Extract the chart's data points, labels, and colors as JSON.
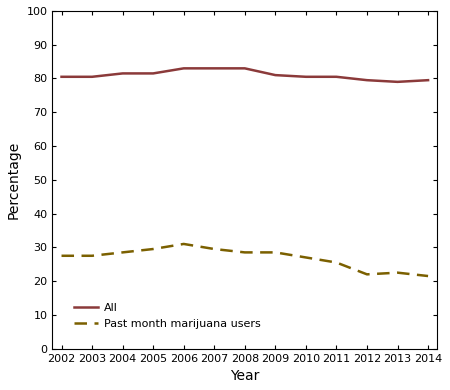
{
  "years": [
    2002,
    2003,
    2004,
    2005,
    2006,
    2007,
    2008,
    2009,
    2010,
    2011,
    2012,
    2013,
    2014
  ],
  "all_persons": [
    80.5,
    80.5,
    81.5,
    81.5,
    83.0,
    83.0,
    83.0,
    81.0,
    80.5,
    80.5,
    79.5,
    79.0,
    79.5
  ],
  "past_month_users": [
    27.5,
    27.5,
    28.5,
    29.5,
    31.0,
    29.5,
    28.5,
    28.5,
    27.0,
    25.5,
    22.0,
    22.5,
    21.5
  ],
  "all_color": "#8B3A3A",
  "users_color": "#7B6000",
  "ylim": [
    0,
    100
  ],
  "xlim_min": 2001.7,
  "xlim_max": 2014.3,
  "yticks": [
    0,
    10,
    20,
    30,
    40,
    50,
    60,
    70,
    80,
    90,
    100
  ],
  "xlabel": "Year",
  "ylabel": "Percentage",
  "legend_all": "All",
  "legend_users": "Past month marijuana users",
  "background_color": "#ffffff",
  "linewidth": 1.8,
  "fig_width": 4.5,
  "fig_height": 3.9,
  "fig_dpi": 100
}
